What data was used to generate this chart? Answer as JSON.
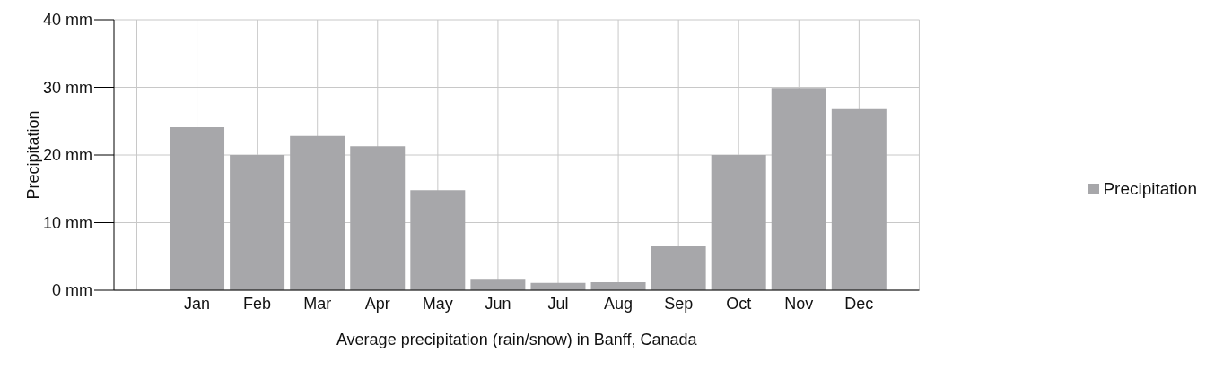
{
  "chart_data": {
    "type": "bar",
    "xlabel": "Average precipitation (rain/snow) in Banff, Canada",
    "ylabel": "Precipitation",
    "categories": [
      "Jan",
      "Feb",
      "Mar",
      "Apr",
      "May",
      "Jun",
      "Jul",
      "Aug",
      "Sep",
      "Oct",
      "Nov",
      "Dec"
    ],
    "series": [
      {
        "name": "Precipitation",
        "color": "#a7a7aa",
        "values": [
          24.1,
          20,
          22.8,
          21.3,
          14.8,
          1.7,
          1.1,
          1.2,
          6.5,
          20,
          29.9,
          26.8
        ]
      }
    ],
    "ylim": [
      0,
      40
    ],
    "yticks": [
      {
        "value": 0,
        "label": "0 mm"
      },
      {
        "value": 10,
        "label": "10 mm"
      },
      {
        "value": 20,
        "label": "20 mm"
      },
      {
        "value": 30,
        "label": "30 mm"
      },
      {
        "value": 40,
        "label": "40 mm"
      }
    ],
    "grid": true,
    "legend": "right"
  }
}
